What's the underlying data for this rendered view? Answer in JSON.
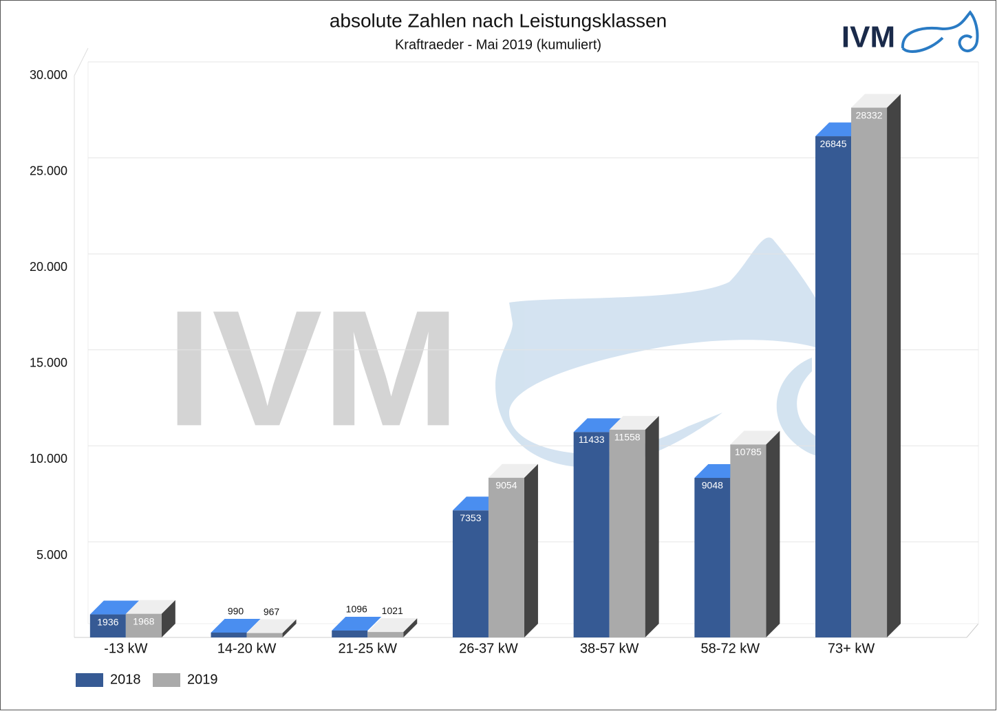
{
  "chart_data": {
    "type": "bar3d",
    "title": "absolute Zahlen nach Leistungsklassen",
    "subtitle": "Kraftraeder - Mai 2019 (kumuliert)",
    "logo": "IVM",
    "categories": [
      "-13 kW",
      "14-20 kW",
      "21-25 kW",
      "26-37 kW",
      "38-57 kW",
      "58-72 kW",
      "73+ kW"
    ],
    "series": [
      {
        "name": "2018",
        "color": "#365a94",
        "top_color": "#4a8ef0",
        "values": [
          1936,
          990,
          1096,
          7353,
          11433,
          9048,
          26845
        ]
      },
      {
        "name": "2019",
        "color": "#aaaaaa",
        "top_color": "#eeeeee",
        "side_color": "#444444",
        "values": [
          1968,
          967,
          1021,
          9054,
          11558,
          10785,
          28332
        ]
      }
    ],
    "ylim": [
      0,
      30000
    ],
    "yticks": [
      {
        "value": 5000,
        "label": "5.000"
      },
      {
        "value": 10000,
        "label": "10.000"
      },
      {
        "value": 15000,
        "label": "15.000"
      },
      {
        "value": 20000,
        "label": "20.000"
      },
      {
        "value": 25000,
        "label": "25.000"
      },
      {
        "value": 30000,
        "label": "30.000"
      }
    ],
    "grid": true
  }
}
